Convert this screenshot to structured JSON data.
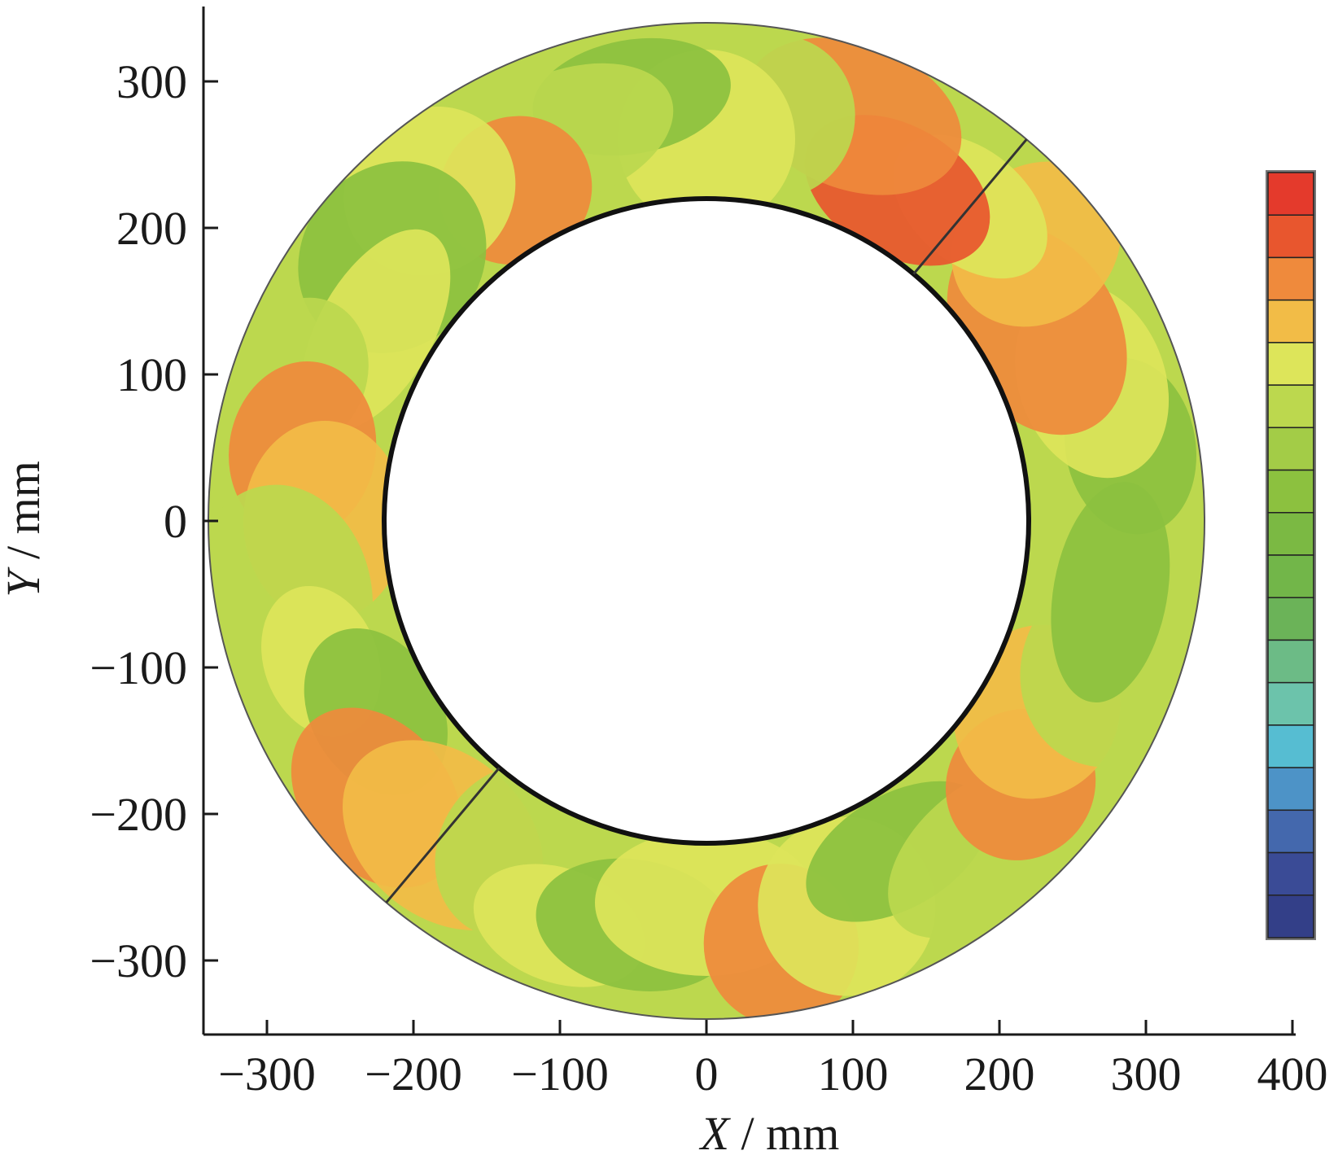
{
  "chart_data": {
    "type": "heatmap",
    "title": "",
    "xlabel": {
      "var": "X",
      "unit": " / mm"
    },
    "ylabel": {
      "var": "Y",
      "unit": " / mm"
    },
    "xlim": [
      -344,
      400
    ],
    "ylim": [
      -345,
      340
    ],
    "x_ticks": [
      {
        "value": -300,
        "label": "−300"
      },
      {
        "value": -200,
        "label": "−200"
      },
      {
        "value": -100,
        "label": "−100"
      },
      {
        "value": 0,
        "label": "0"
      },
      {
        "value": 100,
        "label": "100"
      },
      {
        "value": 200,
        "label": "200"
      },
      {
        "value": 300,
        "label": "300"
      },
      {
        "value": 400,
        "label": "400"
      }
    ],
    "y_ticks": [
      {
        "value": 300,
        "label": "300"
      },
      {
        "value": 200,
        "label": "200"
      },
      {
        "value": 100,
        "label": "100"
      },
      {
        "value": 0,
        "label": "0"
      },
      {
        "value": -100,
        "label": "−100"
      },
      {
        "value": -200,
        "label": "−200"
      },
      {
        "value": -300,
        "label": "−300"
      }
    ],
    "grid": false,
    "ring": {
      "inner_radius_mm": 220,
      "outer_radius_mm": 340,
      "seams": [
        {
          "angle_deg": 50
        },
        {
          "angle_deg": 230
        }
      ]
    },
    "regions": [
      {
        "angle_deg": 0,
        "level": "yellow-green"
      },
      {
        "angle_deg": 10,
        "level": "green"
      },
      {
        "angle_deg": 20,
        "level": "yellow"
      },
      {
        "angle_deg": 30,
        "level": "orange"
      },
      {
        "angle_deg": 40,
        "level": "light-orange"
      },
      {
        "angle_deg": 50,
        "level": "yellow"
      },
      {
        "angle_deg": 60,
        "level": "orange-red"
      },
      {
        "angle_deg": 70,
        "level": "orange"
      },
      {
        "angle_deg": 80,
        "level": "yellow-green"
      },
      {
        "angle_deg": 90,
        "level": "yellow"
      },
      {
        "angle_deg": 100,
        "level": "green"
      },
      {
        "angle_deg": 110,
        "level": "yellow-green"
      },
      {
        "angle_deg": 120,
        "level": "orange"
      },
      {
        "angle_deg": 130,
        "level": "yellow"
      },
      {
        "angle_deg": 140,
        "level": "green"
      },
      {
        "angle_deg": 150,
        "level": "yellow"
      },
      {
        "angle_deg": 160,
        "level": "yellow-green"
      },
      {
        "angle_deg": 170,
        "level": "orange"
      },
      {
        "angle_deg": 180,
        "level": "light-orange"
      },
      {
        "angle_deg": 190,
        "level": "yellow-green"
      },
      {
        "angle_deg": 200,
        "level": "yellow"
      },
      {
        "angle_deg": 210,
        "level": "green"
      },
      {
        "angle_deg": 220,
        "level": "orange"
      },
      {
        "angle_deg": 230,
        "level": "light-orange"
      },
      {
        "angle_deg": 240,
        "level": "yellow-green"
      },
      {
        "angle_deg": 250,
        "level": "yellow"
      },
      {
        "angle_deg": 260,
        "level": "green"
      },
      {
        "angle_deg": 270,
        "level": "yellow"
      },
      {
        "angle_deg": 280,
        "level": "orange"
      },
      {
        "angle_deg": 290,
        "level": "yellow"
      },
      {
        "angle_deg": 300,
        "level": "green"
      },
      {
        "angle_deg": 310,
        "level": "yellow-green"
      },
      {
        "angle_deg": 320,
        "level": "orange"
      },
      {
        "angle_deg": 330,
        "level": "light-orange"
      },
      {
        "angle_deg": 340,
        "level": "yellow-green"
      },
      {
        "angle_deg": 350,
        "level": "green"
      }
    ],
    "colorbar": {
      "levels": [
        {
          "name": "red",
          "color": "#e43a2c"
        },
        {
          "name": "orange-red",
          "color": "#e8562e"
        },
        {
          "name": "orange",
          "color": "#ef8a3c"
        },
        {
          "name": "light-orange",
          "color": "#f2bc47"
        },
        {
          "name": "yellow",
          "color": "#dde55a"
        },
        {
          "name": "yellow-green",
          "color": "#bcd84e"
        },
        {
          "name": "light-green",
          "color": "#a3cc47"
        },
        {
          "name": "green",
          "color": "#8cc13f"
        },
        {
          "name": "green-2",
          "color": "#7bb943"
        },
        {
          "name": "green-3",
          "color": "#72b649"
        },
        {
          "name": "green-4",
          "color": "#6bb358"
        },
        {
          "name": "teal-green",
          "color": "#6cbb86"
        },
        {
          "name": "teal",
          "color": "#6cc3ab"
        },
        {
          "name": "cyan",
          "color": "#56bdd2"
        },
        {
          "name": "sky-blue",
          "color": "#4d93c7"
        },
        {
          "name": "blue",
          "color": "#4468ad"
        },
        {
          "name": "dark-blue",
          "color": "#3a4b96"
        },
        {
          "name": "navy",
          "color": "#333f88"
        }
      ]
    }
  }
}
